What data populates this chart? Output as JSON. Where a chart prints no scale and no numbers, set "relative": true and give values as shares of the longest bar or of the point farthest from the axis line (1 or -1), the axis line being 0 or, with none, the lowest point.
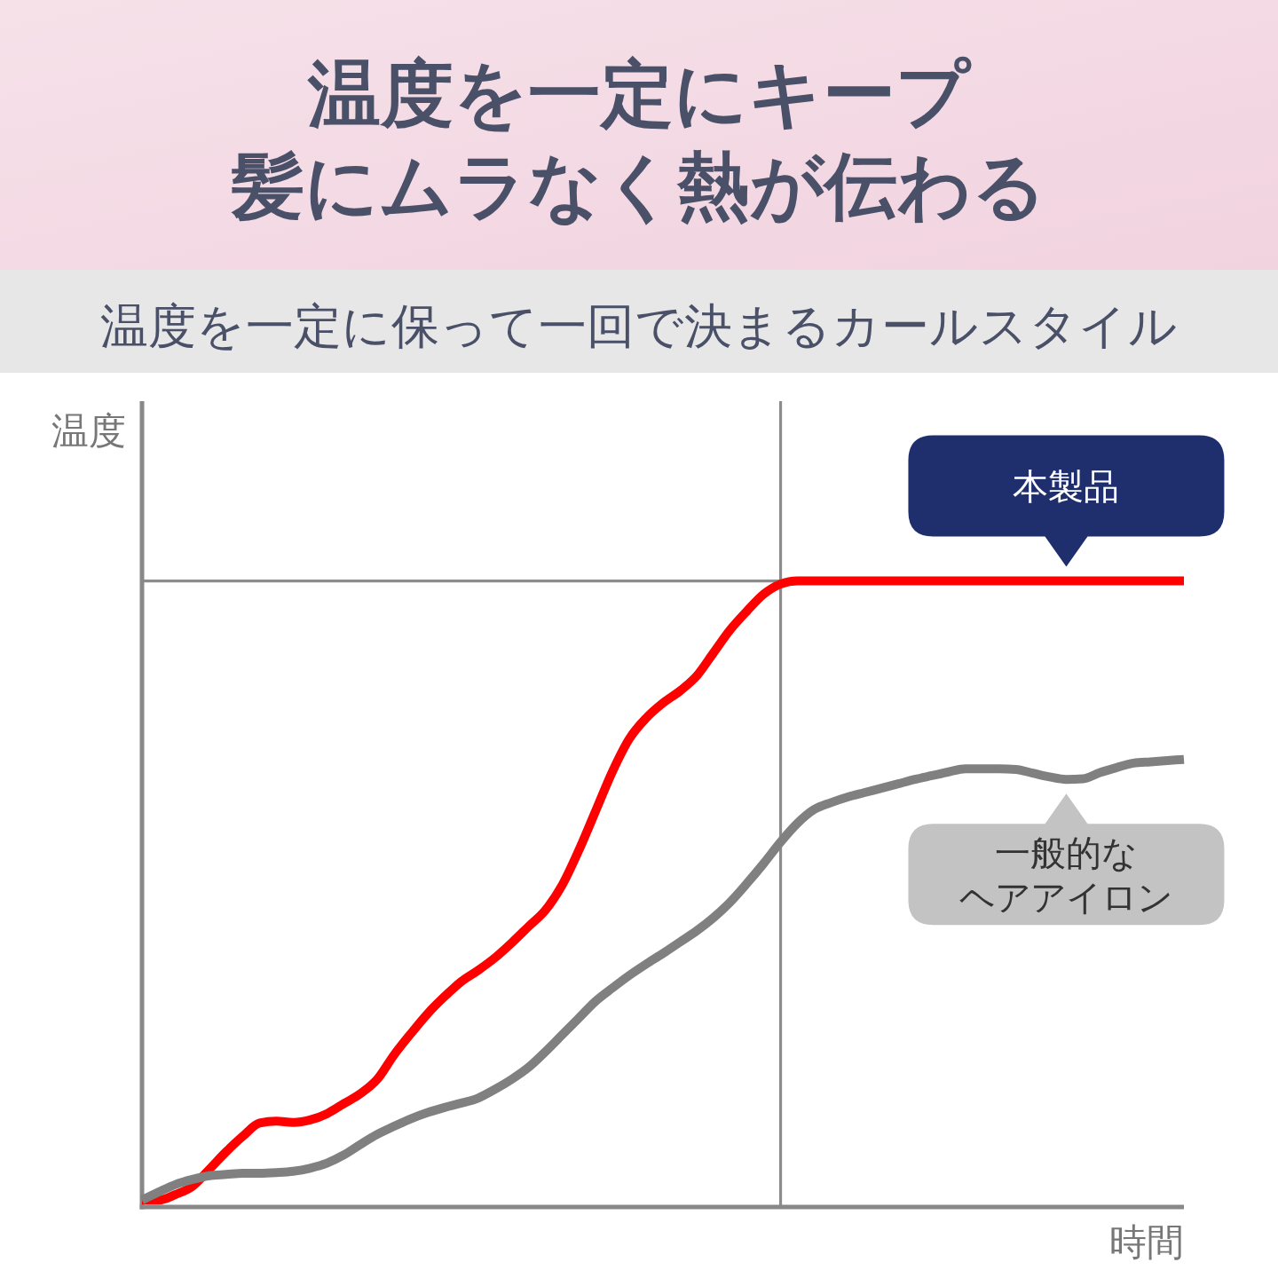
{
  "chart_data": {
    "type": "line",
    "title": "温度を一定にキープ髪にムラなく熱が伝わる",
    "subtitle": "温度を一定に保って一回で決まるカールスタイル",
    "xlabel": "時間",
    "ylabel": "温度",
    "relative": true,
    "categories": [
      null,
      null,
      null,
      null,
      null,
      null,
      null,
      null,
      null,
      null,
      null,
      null,
      null,
      null,
      null,
      null,
      null,
      null,
      null,
      null,
      null,
      null,
      null,
      null,
      null,
      null,
      null,
      null,
      null,
      null,
      null,
      null,
      null,
      null,
      null,
      null,
      null,
      null,
      null,
      null,
      null,
      null,
      null,
      null,
      null,
      null,
      null,
      null,
      null,
      null,
      null,
      null,
      null,
      null,
      null,
      null,
      null,
      null,
      null,
      null,
      null,
      null,
      null
    ],
    "series": [
      {
        "name": "本製品",
        "color": "#ff0000",
        "values": [
          0.011,
          0.011,
          0.02,
          0.033,
          0.06,
          0.088,
          0.113,
          0.134,
          0.137,
          0.135,
          0.139,
          0.149,
          0.165,
          0.181,
          0.204,
          0.243,
          0.277,
          0.309,
          0.336,
          0.36,
          0.378,
          0.398,
          0.422,
          0.448,
          0.474,
          0.514,
          0.57,
          0.633,
          0.696,
          0.748,
          0.781,
          0.805,
          0.824,
          0.848,
          0.885,
          0.922,
          0.952,
          0.979,
          0.995,
          1,
          1,
          1,
          1,
          1,
          1,
          1,
          1,
          1,
          1,
          1,
          1,
          1,
          1,
          1,
          1,
          1,
          1,
          1,
          1,
          1,
          1,
          1,
          1
        ]
      },
      {
        "name": "一般的なヘアアイロン",
        "color": "#808080",
        "values": [
          0.011,
          0.024,
          0.036,
          0.044,
          0.05,
          0.052,
          0.054,
          0.054,
          0.055,
          0.057,
          0.062,
          0.07,
          0.083,
          0.1,
          0.116,
          0.129,
          0.141,
          0.151,
          0.159,
          0.166,
          0.174,
          0.188,
          0.204,
          0.223,
          0.248,
          0.275,
          0.302,
          0.329,
          0.35,
          0.37,
          0.388,
          0.405,
          0.423,
          0.441,
          0.462,
          0.487,
          0.517,
          0.549,
          0.583,
          0.613,
          0.635,
          0.646,
          0.655,
          0.662,
          0.669,
          0.676,
          0.683,
          0.689,
          0.695,
          0.7,
          0.7,
          0.7,
          0.699,
          0.693,
          0.687,
          0.683,
          0.684,
          0.694,
          0.702,
          0.709,
          0.711,
          0.713,
          0.715
        ]
      }
    ]
  }
}
